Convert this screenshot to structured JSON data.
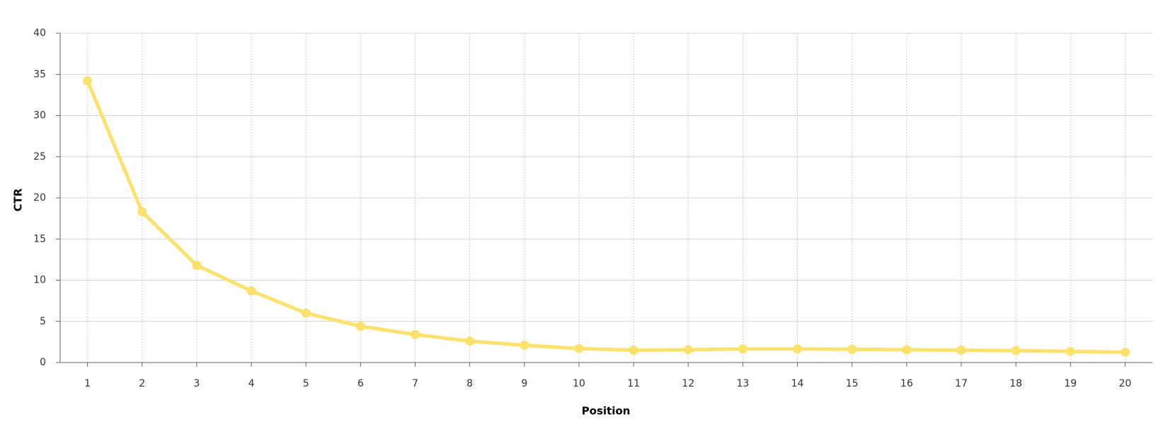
{
  "chart_data": {
    "type": "line",
    "x_label": "Position",
    "y_label": "CTR",
    "categories": [
      "1",
      "2",
      "3",
      "4",
      "5",
      "6",
      "7",
      "8",
      "9",
      "10",
      "11",
      "12",
      "13",
      "14",
      "15",
      "16",
      "17",
      "18",
      "19",
      "20"
    ],
    "series": [
      {
        "color": "#fde16d",
        "values": [
          34.2,
          18.3,
          11.8,
          8.7,
          6.0,
          4.4,
          3.4,
          2.6,
          2.1,
          1.7,
          1.5,
          1.55,
          1.65,
          1.65,
          1.6,
          1.55,
          1.5,
          1.45,
          1.35,
          1.25
        ]
      }
    ],
    "ylim": [
      0,
      40
    ],
    "yticks": [
      0,
      5,
      10,
      15,
      20,
      25,
      30,
      35,
      40
    ],
    "grid": true
  }
}
